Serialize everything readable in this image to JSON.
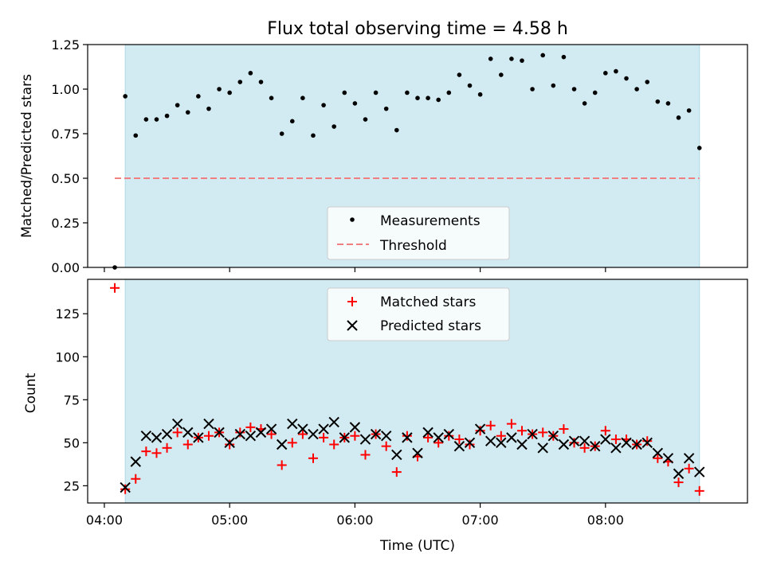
{
  "chart_data": [
    {
      "type": "scatter",
      "title": "Flux total observing time = 4.58 h",
      "xlabel": "",
      "ylabel": "Matched/Predicted stars",
      "ylim": [
        0,
        1.25
      ],
      "yticks": [
        "0.00",
        "0.25",
        "0.50",
        "0.75",
        "1.00",
        "1.25"
      ],
      "xlim": [
        "04:00",
        "09:00"
      ],
      "shaded_interval": [
        "04:10",
        "08:45"
      ],
      "shade_color": "#add8e6",
      "threshold": {
        "name": "Threshold",
        "value": 0.5,
        "x_start": "04:05",
        "x_end": "08:45",
        "color": "#f08080",
        "style": "dashed"
      },
      "legend": {
        "placement": "bottom-center",
        "entries": [
          "Measurements",
          "Threshold"
        ]
      },
      "series": [
        {
          "name": "Measurements",
          "color": "#000000",
          "marker": "dot",
          "x": [
            "04:05",
            "04:10",
            "04:15",
            "04:20",
            "04:25",
            "04:30",
            "04:35",
            "04:40",
            "04:45",
            "04:50",
            "04:55",
            "05:00",
            "05:05",
            "05:10",
            "05:15",
            "05:20",
            "05:25",
            "05:30",
            "05:35",
            "05:40",
            "05:45",
            "05:50",
            "05:55",
            "06:00",
            "06:05",
            "06:10",
            "06:15",
            "06:20",
            "06:25",
            "06:30",
            "06:35",
            "06:40",
            "06:45",
            "06:50",
            "06:55",
            "07:00",
            "07:05",
            "07:10",
            "07:15",
            "07:20",
            "07:25",
            "07:30",
            "07:35",
            "07:40",
            "07:45",
            "07:50",
            "07:55",
            "08:00",
            "08:05",
            "08:10",
            "08:15",
            "08:20",
            "08:25",
            "08:30",
            "08:35",
            "08:40",
            "08:45"
          ],
          "y": [
            0.0,
            0.96,
            0.74,
            0.83,
            0.83,
            0.85,
            0.91,
            0.87,
            0.96,
            0.89,
            1.0,
            0.98,
            1.04,
            1.09,
            1.04,
            0.95,
            0.75,
            0.82,
            0.95,
            0.74,
            0.91,
            0.79,
            0.98,
            0.92,
            0.83,
            0.98,
            0.89,
            0.77,
            0.98,
            0.95,
            0.95,
            0.94,
            0.98,
            1.08,
            1.02,
            0.97,
            1.17,
            1.08,
            1.17,
            1.16,
            1.0,
            1.19,
            1.02,
            1.18,
            1.0,
            0.92,
            0.98,
            1.09,
            1.1,
            1.06,
            1.0,
            1.04,
            0.93,
            0.92,
            0.84,
            0.88,
            0.67
          ]
        }
      ]
    },
    {
      "type": "scatter",
      "title": "",
      "xlabel": "Time (UTC)",
      "ylabel": "Count",
      "ylim": [
        15,
        145
      ],
      "yticks": [
        "25",
        "50",
        "75",
        "100",
        "125"
      ],
      "xticks": [
        "04:00",
        "05:00",
        "06:00",
        "07:00",
        "08:00"
      ],
      "xlim": [
        "04:00",
        "09:00"
      ],
      "shaded_interval": [
        "04:10",
        "08:45"
      ],
      "shade_color": "#add8e6",
      "legend": {
        "placement": "top-center",
        "entries": [
          "Matched stars",
          "Predicted stars"
        ]
      },
      "series": [
        {
          "name": "Matched stars",
          "color": "#ff0000",
          "marker": "plus",
          "x": [
            "04:05",
            "04:10",
            "04:15",
            "04:20",
            "04:25",
            "04:30",
            "04:35",
            "04:40",
            "04:45",
            "04:50",
            "04:55",
            "05:00",
            "05:05",
            "05:10",
            "05:15",
            "05:20",
            "05:25",
            "05:30",
            "05:35",
            "05:40",
            "05:45",
            "05:50",
            "05:55",
            "06:00",
            "06:05",
            "06:10",
            "06:15",
            "06:20",
            "06:25",
            "06:30",
            "06:35",
            "06:40",
            "06:45",
            "06:50",
            "06:55",
            "07:00",
            "07:05",
            "07:10",
            "07:15",
            "07:20",
            "07:25",
            "07:30",
            "07:35",
            "07:40",
            "07:45",
            "07:50",
            "07:55",
            "08:00",
            "08:05",
            "08:10",
            "08:15",
            "08:20",
            "08:25",
            "08:30",
            "08:35",
            "08:40",
            "08:45"
          ],
          "y": [
            140,
            23,
            29,
            45,
            44,
            47,
            56,
            49,
            53,
            54,
            56,
            49,
            56,
            59,
            58,
            55,
            37,
            50,
            55,
            41,
            53,
            49,
            53,
            54,
            43,
            55,
            48,
            33,
            54,
            42,
            53,
            50,
            54,
            52,
            49,
            57,
            60,
            54,
            61,
            57,
            55,
            56,
            54,
            58,
            50,
            47,
            48,
            57,
            52,
            52,
            49,
            51,
            41,
            39,
            27,
            35,
            22
          ]
        },
        {
          "name": "Predicted stars",
          "color": "#000000",
          "marker": "cross",
          "x": [
            "04:10",
            "04:15",
            "04:20",
            "04:25",
            "04:30",
            "04:35",
            "04:40",
            "04:45",
            "04:50",
            "04:55",
            "05:00",
            "05:05",
            "05:10",
            "05:15",
            "05:20",
            "05:25",
            "05:30",
            "05:35",
            "05:40",
            "05:45",
            "05:50",
            "05:55",
            "06:00",
            "06:05",
            "06:10",
            "06:15",
            "06:20",
            "06:25",
            "06:30",
            "06:35",
            "06:40",
            "06:45",
            "06:50",
            "06:55",
            "07:00",
            "07:05",
            "07:10",
            "07:15",
            "07:20",
            "07:25",
            "07:30",
            "07:35",
            "07:40",
            "07:45",
            "07:50",
            "07:55",
            "08:00",
            "08:05",
            "08:10",
            "08:15",
            "08:20",
            "08:25",
            "08:30",
            "08:35",
            "08:40",
            "08:45"
          ],
          "y": [
            24,
            39,
            54,
            53,
            55,
            61,
            56,
            53,
            61,
            56,
            50,
            55,
            54,
            56,
            58,
            49,
            61,
            58,
            55,
            58,
            62,
            53,
            59,
            52,
            55,
            54,
            43,
            53,
            44,
            56,
            53,
            55,
            48,
            50,
            58,
            51,
            50,
            53,
            49,
            55,
            47,
            54,
            49,
            51,
            51,
            48,
            52,
            47,
            50,
            49,
            50,
            44,
            41,
            32,
            41,
            33
          ]
        }
      ]
    }
  ]
}
